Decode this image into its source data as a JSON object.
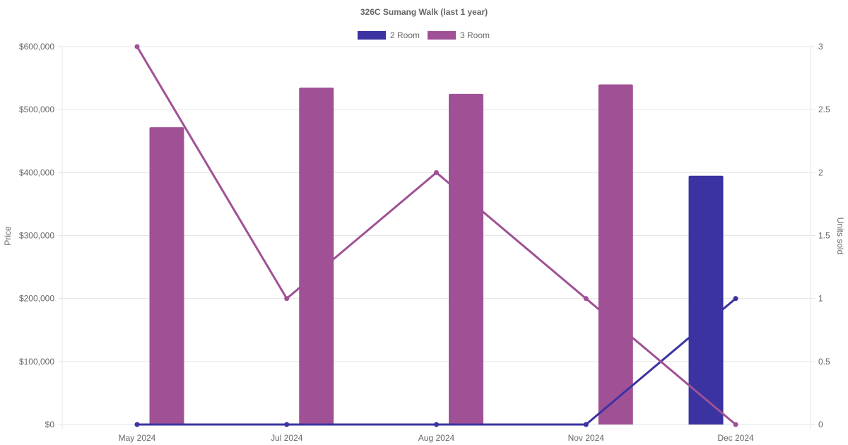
{
  "chart_data": {
    "type": "bar",
    "title": "326C Sumang Walk (last 1 year)",
    "categories": [
      "May 2024",
      "Jul 2024",
      "Aug 2024",
      "Nov 2024",
      "Dec 2024"
    ],
    "legend": {
      "position": "top-center"
    },
    "colors": {
      "2 Room": "#3a33a1",
      "3 Room": "#a05195"
    },
    "y_left": {
      "label": "Price",
      "ylim": [
        0,
        600000
      ],
      "ticks": [
        "$0",
        "$100,000",
        "$200,000",
        "$300,000",
        "$400,000",
        "$500,000",
        "$600,000"
      ]
    },
    "y_right": {
      "label": "Units sold",
      "ylim": [
        0,
        3
      ],
      "ticks": [
        "0",
        "0.5",
        "1",
        "1.5",
        "2",
        "2.5",
        "3"
      ]
    },
    "grid": true,
    "bar_series": [
      {
        "name": "2 Room",
        "axis": "left",
        "values": [
          null,
          null,
          null,
          null,
          395000
        ]
      },
      {
        "name": "3 Room",
        "axis": "left",
        "values": [
          472000,
          535000,
          525000,
          540000,
          null
        ]
      }
    ],
    "line_series": [
      {
        "name": "2 Room",
        "axis": "right",
        "values": [
          0,
          0,
          0,
          0,
          1
        ]
      },
      {
        "name": "3 Room",
        "axis": "right",
        "values": [
          3,
          1,
          2,
          1,
          0
        ]
      }
    ]
  }
}
